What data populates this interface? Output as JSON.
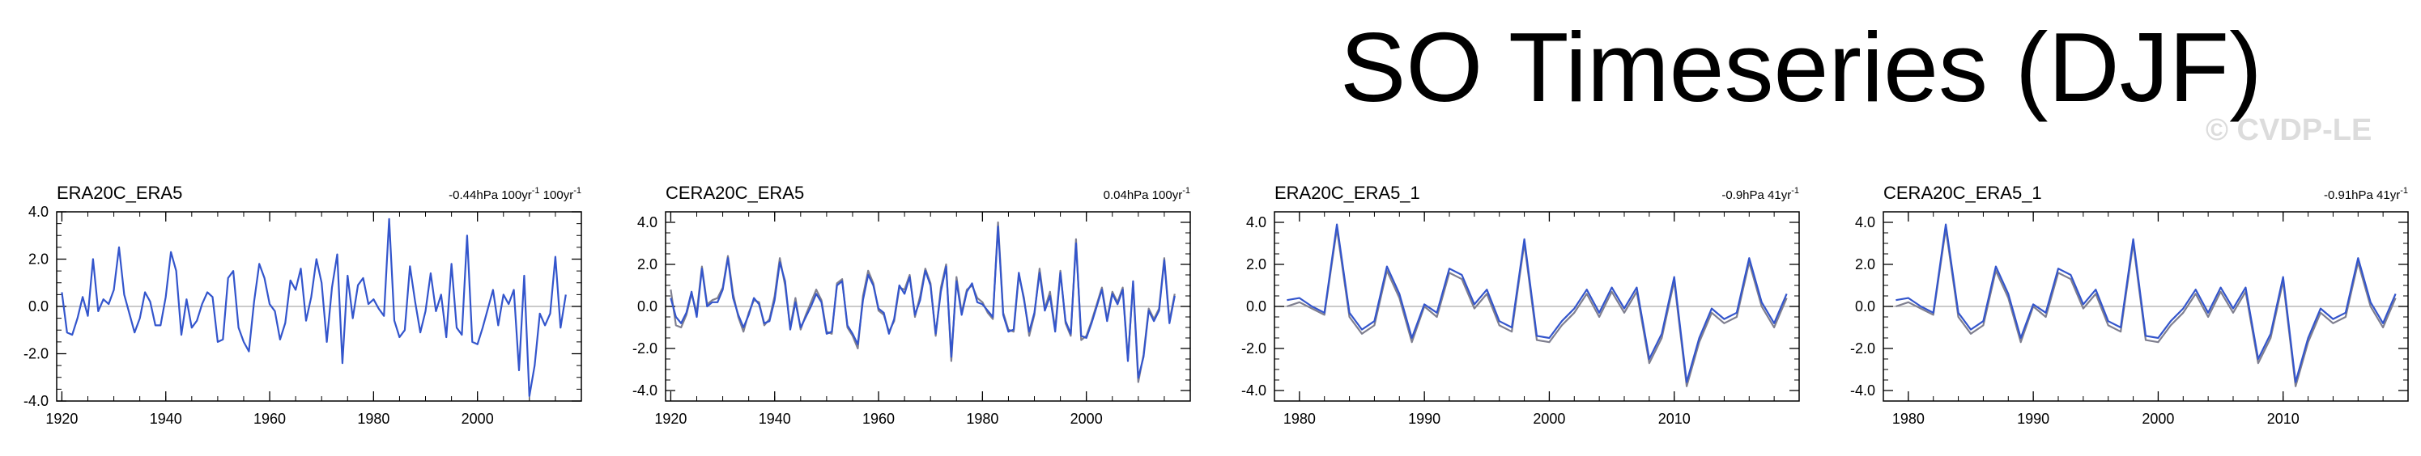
{
  "title": "SO Timeseries (DJF)",
  "watermark": "© CVDP-LE",
  "colors": {
    "blue": "#3355cc",
    "gray": "#7f7f8f",
    "axis": "#000000",
    "zero": "#aaaaaa"
  },
  "chart_data": [
    {
      "type": "line",
      "title": "ERA20C_ERA5",
      "trend_text": "-0.44hPa 100yr",
      "trend_superscript": "-1",
      "trend_text2": " 100yr",
      "trend_superscript2": "-1",
      "xlim": [
        1919,
        2020
      ],
      "ylim": [
        -4.0,
        4.0
      ],
      "xticks": [
        1920,
        1940,
        1960,
        1980,
        2000
      ],
      "yticks": [
        -4.0,
        -2.0,
        0.0,
        2.0,
        4.0
      ],
      "ytick_labels": [
        "-4.0",
        "-2.0",
        "0.0",
        "2.0",
        "4.0"
      ],
      "x_start": 1920,
      "series": [
        {
          "name": "ERA20C",
          "color": "#3355cc",
          "values": [
            0.6,
            -1.1,
            -1.2,
            -0.5,
            0.4,
            -0.4,
            2.0,
            -0.2,
            0.3,
            0.1,
            0.7,
            2.5,
            0.5,
            -0.3,
            -1.1,
            -0.5,
            0.6,
            0.2,
            -0.8,
            -0.8,
            0.4,
            2.3,
            1.5,
            -1.2,
            0.3,
            -0.9,
            -0.6,
            0.1,
            0.6,
            0.4,
            -1.5,
            -1.4,
            1.2,
            1.5,
            -0.9,
            -1.5,
            -1.9,
            0.2,
            1.8,
            1.2,
            0.1,
            -0.2,
            -1.4,
            -0.7,
            1.1,
            0.7,
            1.6,
            -0.6,
            0.4,
            2.0,
            1.0,
            -1.5,
            0.8,
            2.2,
            -2.4,
            1.3,
            -0.5,
            0.9,
            1.2,
            0.1,
            0.3,
            -0.1,
            -0.4,
            3.7,
            -0.6,
            -1.3,
            -1.0,
            1.7,
            0.2,
            -1.1,
            -0.2,
            1.4,
            -0.2,
            0.5,
            -1.3,
            1.8,
            -0.9,
            -1.2,
            3.0,
            -1.5,
            -1.6,
            -0.9,
            -0.1,
            0.7,
            -0.8,
            0.5,
            0.1,
            0.7,
            -2.7,
            1.3,
            -3.8,
            -2.5,
            -0.3,
            -0.8,
            -0.3,
            2.1,
            -0.9,
            0.5
          ]
        }
      ]
    },
    {
      "type": "line",
      "title": "CERA20C_ERA5",
      "trend_text": "0.04hPa 100yr",
      "trend_superscript": "-1",
      "xlim": [
        1919,
        2020
      ],
      "ylim": [
        -4.5,
        4.5
      ],
      "xticks": [
        1920,
        1940,
        1960,
        1980,
        2000
      ],
      "yticks": [
        -4.0,
        -2.0,
        0.0,
        2.0,
        4.0
      ],
      "ytick_labels": [
        "-4.0",
        "-2.0",
        "0.0",
        "2.0",
        "4.0"
      ],
      "x_start": 1920,
      "series": [
        {
          "name": "CERA20C",
          "color": "#7f7f8f",
          "values": [
            0.8,
            -0.9,
            -1.0,
            -0.4,
            0.6,
            -0.3,
            1.9,
            0.1,
            0.3,
            0.4,
            0.9,
            2.4,
            0.6,
            -0.5,
            -1.2,
            -0.3,
            0.3,
            0.2,
            -0.9,
            -0.6,
            0.5,
            2.3,
            1.0,
            -1.0,
            0.4,
            -1.1,
            -0.4,
            0.2,
            0.8,
            0.3,
            -1.2,
            -1.3,
            1.1,
            1.3,
            -1.0,
            -1.4,
            -2.0,
            0.5,
            1.7,
            1.1,
            -0.2,
            -0.4,
            -1.2,
            -0.7,
            0.9,
            0.8,
            1.5,
            -0.5,
            0.5,
            1.8,
            1.1,
            -1.4,
            0.9,
            2.0,
            -2.6,
            1.4,
            -0.3,
            0.8,
            1.0,
            0.4,
            0.2,
            -0.3,
            -0.6,
            4.0,
            -0.3,
            -1.1,
            -1.2,
            1.5,
            0.4,
            -1.4,
            -0.4,
            1.8,
            -0.1,
            0.7,
            -1.1,
            1.7,
            -0.8,
            -1.4,
            3.2,
            -1.6,
            -1.4,
            -0.7,
            0.1,
            0.9,
            -0.6,
            0.7,
            0.2,
            0.9,
            -2.5,
            1.1,
            -3.6,
            -2.3,
            -0.1,
            -0.6,
            -0.1,
            2.3,
            -0.7,
            0.6
          ]
        },
        {
          "name": "ERA5",
          "color": "#3355cc",
          "values": [
            0.4,
            -0.5,
            -0.8,
            -0.3,
            0.7,
            -0.5,
            1.8,
            0.0,
            0.2,
            0.2,
            0.8,
            2.3,
            0.4,
            -0.4,
            -1.0,
            -0.4,
            0.4,
            0.1,
            -0.8,
            -0.7,
            0.3,
            2.1,
            1.2,
            -1.1,
            0.2,
            -1.0,
            -0.5,
            0.0,
            0.6,
            0.2,
            -1.3,
            -1.2,
            1.0,
            1.2,
            -0.9,
            -1.3,
            -1.8,
            0.3,
            1.5,
            1.0,
            -0.1,
            -0.3,
            -1.3,
            -0.6,
            1.0,
            0.6,
            1.4,
            -0.4,
            0.3,
            1.7,
            1.0,
            -1.3,
            0.7,
            1.9,
            -2.4,
            1.2,
            -0.4,
            0.7,
            1.1,
            0.2,
            0.1,
            -0.2,
            -0.5,
            3.8,
            -0.4,
            -1.2,
            -1.1,
            1.6,
            0.3,
            -1.2,
            -0.3,
            1.6,
            -0.2,
            0.5,
            -1.2,
            1.6,
            -0.7,
            -1.3,
            3.0,
            -1.4,
            -1.5,
            -0.8,
            0.0,
            0.8,
            -0.7,
            0.6,
            0.1,
            0.8,
            -2.6,
            1.2,
            -3.4,
            -2.4,
            -0.2,
            -0.7,
            -0.2,
            2.2,
            -0.8,
            0.5
          ]
        }
      ]
    },
    {
      "type": "line",
      "title": "ERA20C_ERA5_1",
      "trend_text": "-0.9hPa 41yr",
      "trend_superscript": "-1",
      "xlim": [
        1978,
        2020
      ],
      "ylim": [
        -4.5,
        4.5
      ],
      "xticks": [
        1980,
        1990,
        2000,
        2010
      ],
      "yticks": [
        -4.0,
        -2.0,
        0.0,
        2.0,
        4.0
      ],
      "ytick_labels": [
        "-4.0",
        "-2.0",
        "0.0",
        "2.0",
        "4.0"
      ],
      "x_start": 1979,
      "series": [
        {
          "name": "ERA20C",
          "color": "#7f7f8f",
          "values": [
            0.0,
            0.2,
            -0.1,
            -0.4,
            3.7,
            -0.5,
            -1.3,
            -0.9,
            1.7,
            0.4,
            -1.7,
            0.0,
            -0.5,
            1.6,
            1.3,
            -0.1,
            0.6,
            -0.9,
            -1.2,
            3.0,
            -1.6,
            -1.7,
            -0.9,
            -0.3,
            0.6,
            -0.5,
            0.7,
            -0.3,
            0.7,
            -2.7,
            -1.5,
            1.2,
            -3.8,
            -1.7,
            -0.3,
            -0.8,
            -0.5,
            2.1,
            0.0,
            -1.0,
            0.4
          ]
        },
        {
          "name": "ERA5",
          "color": "#3355cc",
          "values": [
            0.3,
            0.4,
            0.0,
            -0.3,
            3.9,
            -0.3,
            -1.1,
            -0.7,
            1.9,
            0.6,
            -1.5,
            0.1,
            -0.3,
            1.8,
            1.5,
            0.1,
            0.8,
            -0.7,
            -1.0,
            3.2,
            -1.4,
            -1.5,
            -0.7,
            -0.1,
            0.8,
            -0.3,
            0.9,
            -0.1,
            0.9,
            -2.5,
            -1.3,
            1.4,
            -3.6,
            -1.5,
            -0.1,
            -0.6,
            -0.3,
            2.3,
            0.2,
            -0.8,
            0.6
          ]
        }
      ]
    },
    {
      "type": "line",
      "title": "CERA20C_ERA5_1",
      "trend_text": "-0.91hPa 41yr",
      "trend_superscript": "-1",
      "xlim": [
        1978,
        2020
      ],
      "ylim": [
        -4.5,
        4.5
      ],
      "xticks": [
        1980,
        1990,
        2000,
        2010
      ],
      "yticks": [
        -4.0,
        -2.0,
        0.0,
        2.0,
        4.0
      ],
      "ytick_labels": [
        "-4.0",
        "-2.0",
        "0.0",
        "2.0",
        "4.0"
      ],
      "x_start": 1979,
      "series": [
        {
          "name": "CERA20C",
          "color": "#7f7f8f",
          "values": [
            0.0,
            0.2,
            -0.1,
            -0.4,
            3.7,
            -0.5,
            -1.3,
            -0.9,
            1.7,
            0.4,
            -1.7,
            0.0,
            -0.5,
            1.6,
            1.3,
            -0.1,
            0.6,
            -0.9,
            -1.2,
            3.0,
            -1.6,
            -1.7,
            -0.9,
            -0.3,
            0.6,
            -0.5,
            0.7,
            -0.3,
            0.7,
            -2.7,
            -1.5,
            1.2,
            -3.8,
            -1.7,
            -0.3,
            -0.8,
            -0.5,
            2.1,
            0.0,
            -1.0,
            0.4
          ]
        },
        {
          "name": "ERA5",
          "color": "#3355cc",
          "values": [
            0.3,
            0.4,
            0.0,
            -0.3,
            3.9,
            -0.3,
            -1.1,
            -0.7,
            1.9,
            0.6,
            -1.5,
            0.1,
            -0.3,
            1.8,
            1.5,
            0.1,
            0.8,
            -0.7,
            -1.0,
            3.2,
            -1.4,
            -1.5,
            -0.7,
            -0.1,
            0.8,
            -0.3,
            0.9,
            -0.1,
            0.9,
            -2.5,
            -1.3,
            1.4,
            -3.6,
            -1.5,
            -0.1,
            -0.6,
            -0.3,
            2.3,
            0.2,
            -0.8,
            0.6
          ]
        }
      ]
    }
  ]
}
